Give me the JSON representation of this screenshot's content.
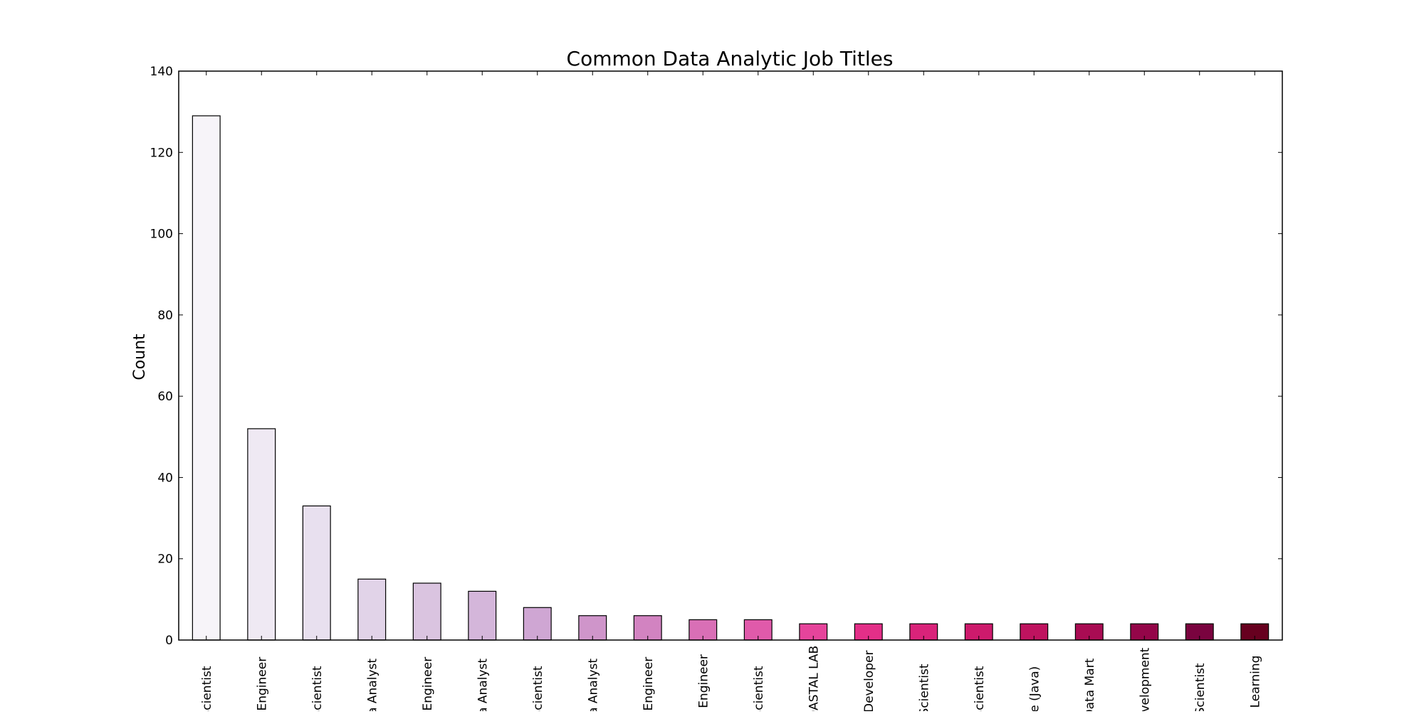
{
  "chart_data": {
    "type": "bar",
    "title": "Common Data Analytic Job Titles",
    "xlabel": "",
    "ylabel": "Count",
    "ylim": [
      0,
      140
    ],
    "yticks": [
      0,
      20,
      40,
      60,
      80,
      100,
      120,
      140
    ],
    "grid": false,
    "legend": "none",
    "categories": [
      "ta Scientist",
      "ta Engineer",
      "ta Scientist",
      "ata Analyst",
      "ta Engineer",
      "ata Analyst",
      "ta Scientist",
      "ata Analyst",
      "ta Engineer",
      "g Engineer",
      "ta Scientist",
      "OASTAL LAB",
      "Developer",
      "ch Scientist",
      "ry Scientist",
      "-Hire (Java)",
      "- Data Mart",
      "evelopment",
      "od Scientist",
      "ne Learning"
    ],
    "values": [
      129,
      52,
      33,
      15,
      14,
      12,
      8,
      6,
      6,
      5,
      5,
      4,
      4,
      4,
      4,
      4,
      4,
      4,
      4,
      4
    ],
    "colors": [
      "#f7f4f9",
      "#efe9f3",
      "#e8e0ef",
      "#e1d3e8",
      "#dac4e0",
      "#d4b6da",
      "#cfa6d3",
      "#cf95ca",
      "#d283c1",
      "#d96fb6",
      "#e05aaa",
      "#e6449b",
      "#e32f88",
      "#d9237a",
      "#cd1a6c",
      "#bf135f",
      "#a90c53",
      "#940649",
      "#7a033f",
      "#67001f"
    ]
  }
}
